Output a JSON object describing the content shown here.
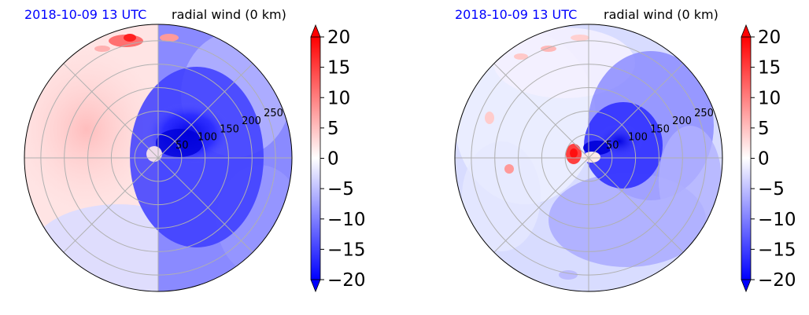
{
  "colors": {
    "date_text": "#0000ff",
    "max_color": "#ff0000",
    "min_color": "#0000ff",
    "grid": "#b0b0b0"
  },
  "chart_data": [
    {
      "type": "heatmap",
      "projection": "polar",
      "date_label": "2018-10-09 13 UTC",
      "title": "radial wind (0 km)",
      "radial_ticks": [
        "50",
        "100",
        "150",
        "200",
        "250"
      ],
      "radial_values": [
        50,
        100,
        150,
        200,
        250
      ],
      "rmax": 285,
      "angular_grid_step_deg": 45,
      "colorbar": {
        "ticks": [
          "20",
          "15",
          "10",
          "5",
          "0",
          "−5",
          "−10",
          "−15",
          "−20"
        ],
        "range": [
          -20,
          20
        ],
        "colormap": "bwr",
        "extend": "both",
        "position": "right"
      },
      "field_pattern": "outflow west half, inflow east half; strongest inflow near center to the northeast"
    },
    {
      "type": "heatmap",
      "projection": "polar",
      "date_label": "2018-10-09 13 UTC",
      "title": "radial wind (0 km)",
      "radial_ticks": [
        "50",
        "100",
        "150",
        "200",
        "250"
      ],
      "radial_values": [
        50,
        100,
        150,
        200,
        250
      ],
      "rmax": 285,
      "angular_grid_step_deg": 45,
      "colorbar": {
        "ticks": [
          "20",
          "15",
          "10",
          "5",
          "0",
          "−5",
          "−10",
          "−15",
          "−20"
        ],
        "range": [
          -20,
          20
        ],
        "colormap": "bwr",
        "extend": "both",
        "position": "right"
      },
      "field_pattern": "inflow dominant; weak patchy outflow in north; strong outflow cell just west of center"
    }
  ]
}
